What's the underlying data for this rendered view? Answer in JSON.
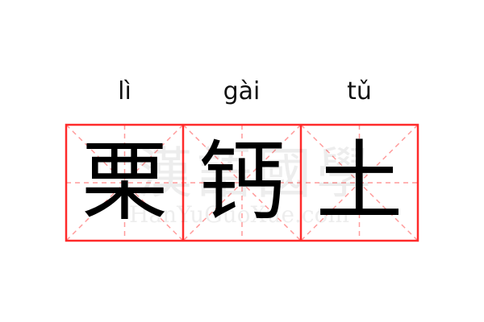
{
  "word": {
    "characters": [
      "栗",
      "钙",
      "土"
    ],
    "pinyin": [
      "lì",
      "gài",
      "tǔ"
    ]
  },
  "watermark": {
    "chinese": "漢語國學",
    "latin": "HanYuGuoXue.com"
  },
  "colors": {
    "border": "#ff2a2a",
    "guide": "#ff9a9a",
    "text": "#000000"
  }
}
